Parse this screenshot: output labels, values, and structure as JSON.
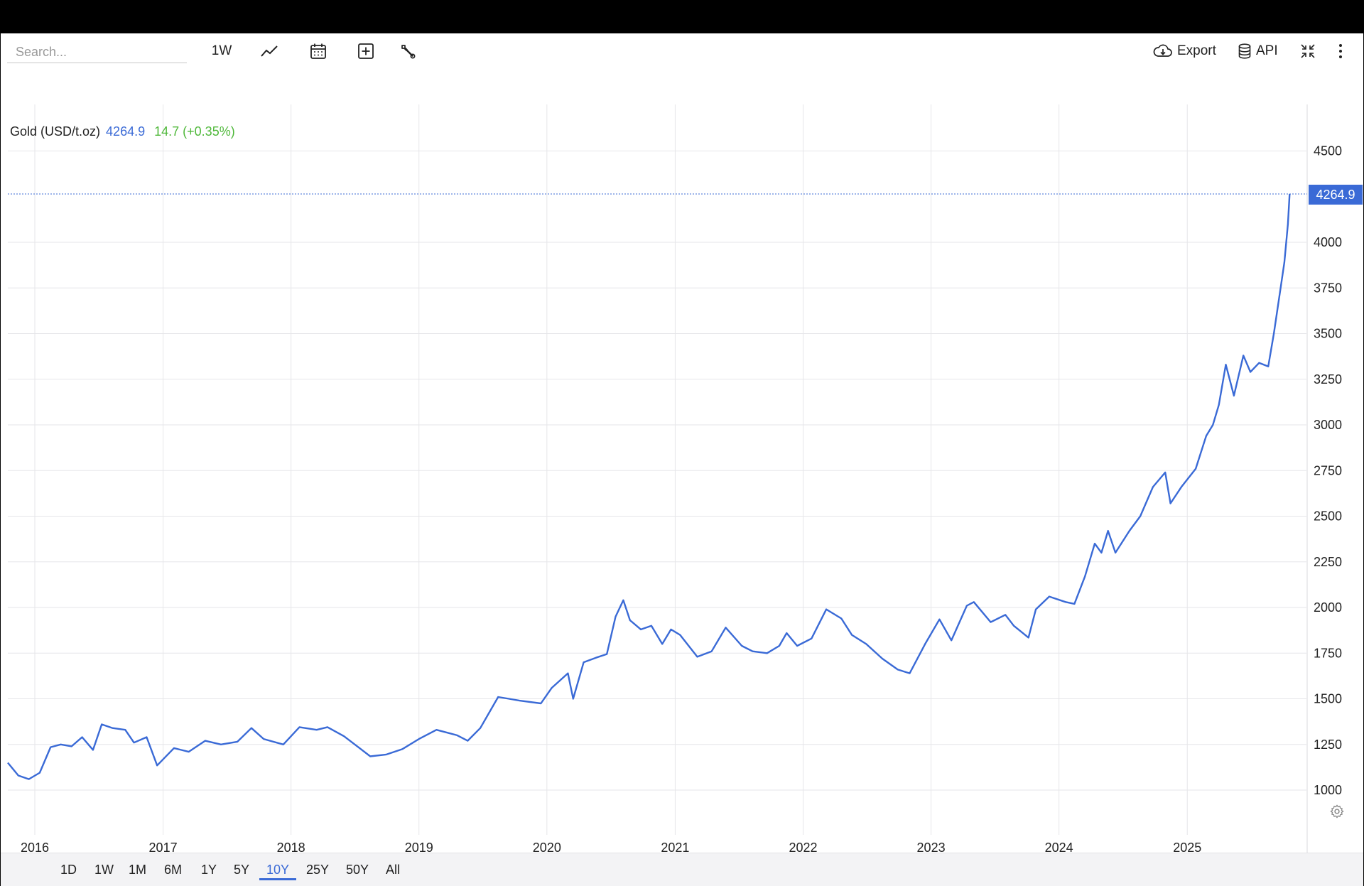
{
  "toolbar": {
    "search_placeholder": "Search...",
    "interval_label": "1W",
    "export_label": "Export",
    "api_label": "API"
  },
  "legend": {
    "name": "Gold (USD/t.oz)",
    "price": "4264.9",
    "change": "14.7 (+0.35%)"
  },
  "price_tag": "4264.9",
  "range_buttons": [
    "1D",
    "1W",
    "1M",
    "6M",
    "1Y",
    "5Y",
    "10Y",
    "25Y",
    "50Y",
    "All"
  ],
  "active_range": "10Y",
  "colors": {
    "line": "#3a6ad6",
    "change_positive": "#4fb83a",
    "grid": "#e6e6e9",
    "background": "#ffffff"
  },
  "chart_data": {
    "type": "line",
    "title": "",
    "xlabel": "",
    "ylabel": "",
    "x_tick_labels": [
      "2016",
      "2017",
      "2018",
      "2019",
      "2020",
      "2021",
      "2022",
      "2023",
      "2024",
      "2025"
    ],
    "y_tick_labels": [
      "1000",
      "1250",
      "1500",
      "1750",
      "2000",
      "2250",
      "2500",
      "2750",
      "3000",
      "3250",
      "3500",
      "3750",
      "4000",
      "4500"
    ],
    "y_ticks": [
      1000,
      1250,
      1500,
      1750,
      2000,
      2250,
      2500,
      2750,
      3000,
      3250,
      3500,
      3750,
      4000,
      4500
    ],
    "ylim": [
      755,
      4755
    ],
    "xlim": [
      "2015-10-16",
      "2025-12-07"
    ],
    "grid": true,
    "legend_position": "top-left",
    "last_value": 4264.9,
    "series": [
      {
        "name": "Gold (USD/t.oz)",
        "x": [
          "2015-10-16",
          "2015-11-15",
          "2015-12-15",
          "2016-01-15",
          "2016-02-15",
          "2016-03-15",
          "2016-04-15",
          "2016-05-15",
          "2016-06-15",
          "2016-07-10",
          "2016-08-10",
          "2016-09-15",
          "2016-10-10",
          "2016-11-15",
          "2016-12-15",
          "2017-02-01",
          "2017-03-15",
          "2017-05-01",
          "2017-06-15",
          "2017-08-01",
          "2017-09-10",
          "2017-10-15",
          "2017-12-10",
          "2018-01-25",
          "2018-03-15",
          "2018-04-15",
          "2018-06-01",
          "2018-08-15",
          "2018-09-30",
          "2018-11-15",
          "2019-01-01",
          "2019-02-20",
          "2019-04-20",
          "2019-05-20",
          "2019-06-25",
          "2019-08-15",
          "2019-09-15",
          "2019-10-15",
          "2019-12-15",
          "2020-01-15",
          "2020-03-01",
          "2020-03-16",
          "2020-04-15",
          "2020-05-20",
          "2020-06-20",
          "2020-07-15",
          "2020-08-06",
          "2020-08-25",
          "2020-09-25",
          "2020-10-25",
          "2020-11-25",
          "2020-12-20",
          "2021-01-15",
          "2021-03-05",
          "2021-04-15",
          "2021-05-25",
          "2021-07-10",
          "2021-08-10",
          "2021-09-20",
          "2021-10-25",
          "2021-11-15",
          "2021-12-15",
          "2022-01-25",
          "2022-03-08",
          "2022-04-20",
          "2022-05-20",
          "2022-06-30",
          "2022-08-15",
          "2022-09-28",
          "2022-11-01",
          "2022-12-15",
          "2023-01-25",
          "2023-02-28",
          "2023-04-13",
          "2023-05-03",
          "2023-06-20",
          "2023-08-01",
          "2023-08-25",
          "2023-10-06",
          "2023-10-27",
          "2023-12-04",
          "2024-01-20",
          "2024-02-14",
          "2024-03-15",
          "2024-04-12",
          "2024-05-01",
          "2024-05-20",
          "2024-06-10",
          "2024-07-20",
          "2024-08-20",
          "2024-09-25",
          "2024-10-30",
          "2024-11-14",
          "2024-12-15",
          "2025-01-25",
          "2025-02-24",
          "2025-03-15",
          "2025-04-01",
          "2025-04-21",
          "2025-05-14",
          "2025-06-10",
          "2025-06-30",
          "2025-07-25",
          "2025-08-20",
          "2025-09-05",
          "2025-09-25",
          "2025-10-05",
          "2025-10-15",
          "2025-10-20"
        ],
        "y": [
          1150,
          1080,
          1060,
          1095,
          1235,
          1250,
          1240,
          1290,
          1220,
          1360,
          1340,
          1330,
          1260,
          1290,
          1135,
          1230,
          1210,
          1270,
          1250,
          1265,
          1340,
          1280,
          1250,
          1345,
          1330,
          1345,
          1295,
          1185,
          1195,
          1225,
          1280,
          1330,
          1300,
          1270,
          1340,
          1510,
          1500,
          1490,
          1475,
          1560,
          1640,
          1500,
          1700,
          1725,
          1745,
          1950,
          2040,
          1930,
          1880,
          1900,
          1800,
          1880,
          1850,
          1730,
          1760,
          1890,
          1790,
          1760,
          1750,
          1790,
          1860,
          1790,
          1830,
          1990,
          1940,
          1850,
          1800,
          1720,
          1660,
          1640,
          1800,
          1935,
          1820,
          2010,
          2030,
          1920,
          1960,
          1900,
          1835,
          1990,
          2060,
          2030,
          2020,
          2170,
          2350,
          2300,
          2420,
          2300,
          2420,
          2500,
          2660,
          2740,
          2570,
          2660,
          2760,
          2940,
          3000,
          3110,
          3330,
          3160,
          3380,
          3290,
          3340,
          3320,
          3500,
          3760,
          3890,
          4100,
          4264.9
        ]
      }
    ]
  }
}
